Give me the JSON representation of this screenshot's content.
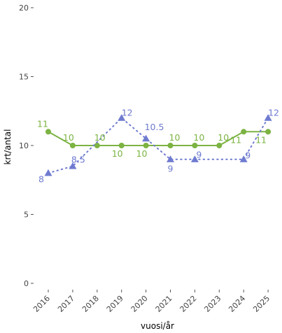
{
  "chart_data": {
    "type": "line",
    "xlabel": "vuosi/år",
    "ylabel": "krt/antal",
    "x": [
      "2016",
      "2017",
      "2018",
      "2019",
      "2020",
      "2021",
      "2022",
      "2023",
      "2024",
      "2025"
    ],
    "ylim": [
      0,
      20
    ],
    "yticks": [
      0,
      5,
      10,
      15,
      20
    ],
    "ytick_labels": [
      "0",
      "5",
      "10",
      "15",
      "20"
    ],
    "grid": false,
    "legend": "none",
    "series": [
      {
        "color": "#7cb342",
        "marker": "circle",
        "line_style": "solid",
        "values": [
          11,
          10,
          10,
          10,
          10,
          10,
          10,
          10,
          11,
          11
        ],
        "labels": [
          "11",
          "10",
          "10",
          "10",
          "10",
          "10",
          "10",
          "10",
          "11",
          "11"
        ]
      },
      {
        "color": "#6f7bd0",
        "marker": "triangle",
        "line_style": "dotted",
        "values": [
          8,
          8.5,
          null,
          12,
          10.5,
          9,
          9,
          null,
          9,
          12
        ],
        "labels": [
          "8",
          "8.5",
          "",
          "12",
          "10.5",
          "9",
          "9",
          "",
          "9",
          "12"
        ]
      }
    ]
  }
}
